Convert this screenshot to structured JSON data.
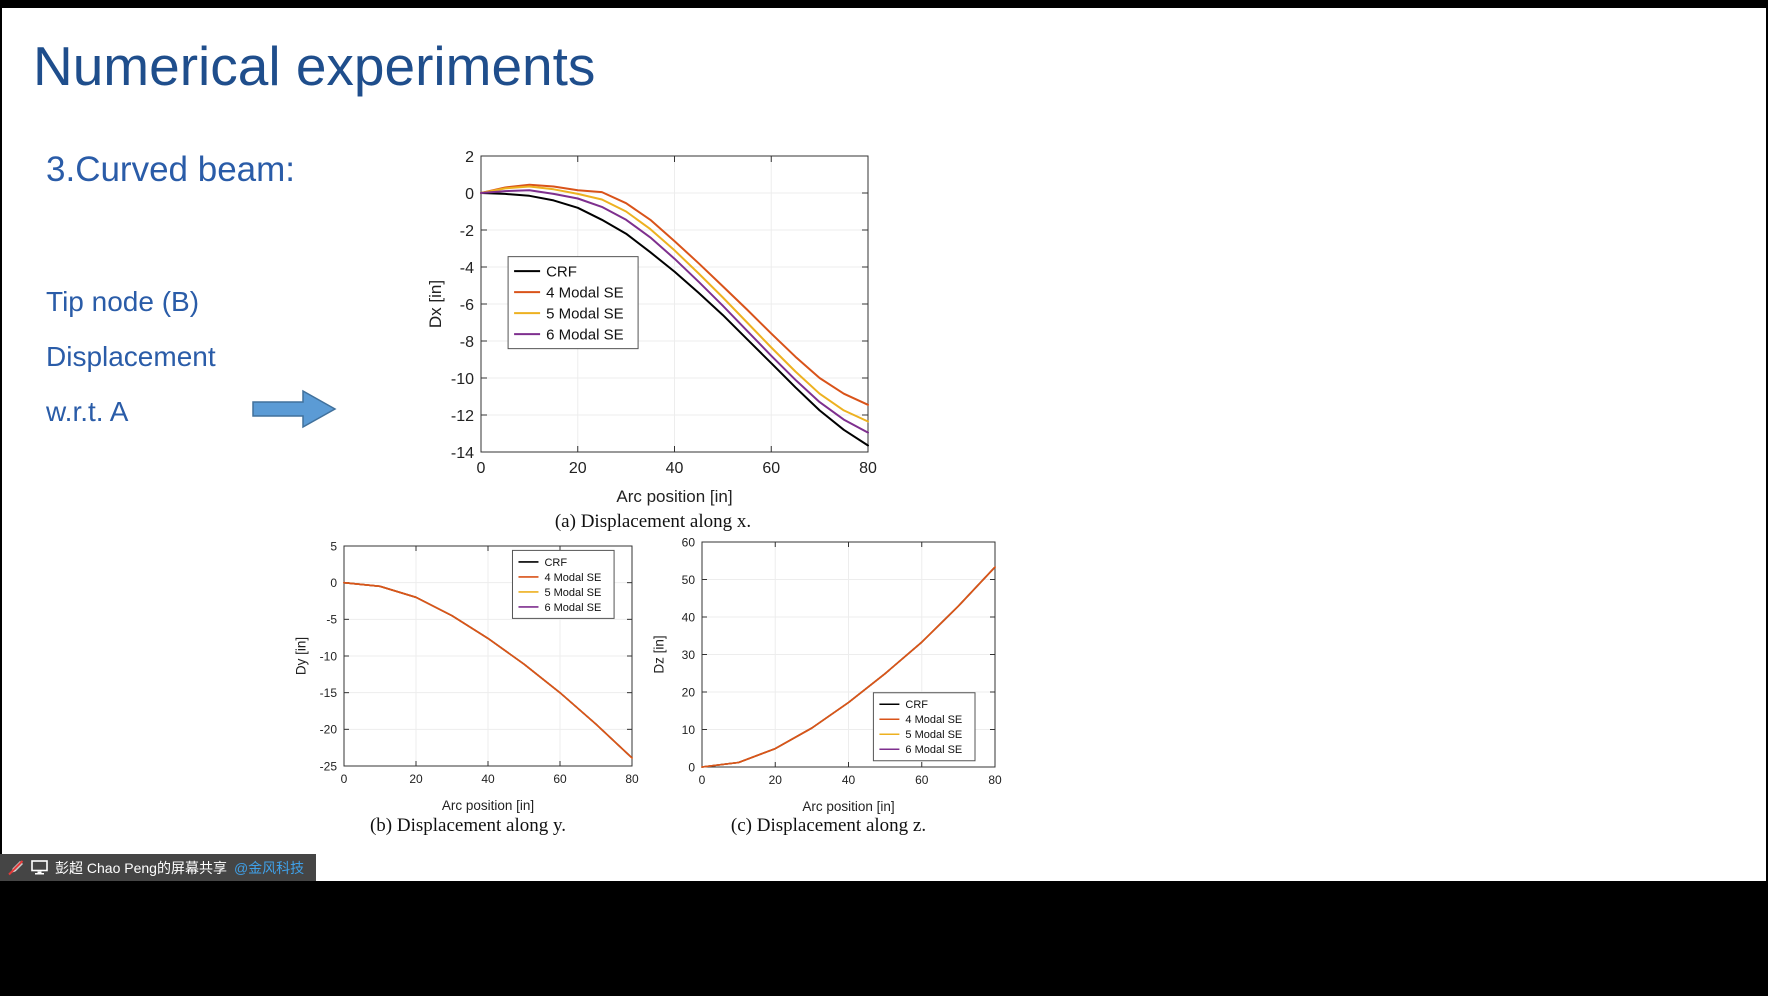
{
  "slide": {
    "title": "Numerical experiments",
    "section": "3.Curved beam:",
    "notes": [
      "Tip node (B)",
      "Displacement",
      "w.r.t. A"
    ]
  },
  "share_bar": {
    "label": "彭超 Chao Peng的屏幕共享",
    "link": "@金风科技"
  },
  "colors": {
    "title": "#1F4E8C",
    "body_text": "#2A5CA8",
    "arrow_fill": "#5B9BD5",
    "arrow_stroke": "#41719C",
    "share_link": "#3FA0E8",
    "series": {
      "CRF": "#000000",
      "4 Modal SE": "#D95319",
      "5 Modal SE": "#EDB120",
      "6 Modal SE": "#7E2F8E"
    }
  },
  "chart_data": [
    {
      "id": "dx",
      "type": "line",
      "caption": "(a) Displacement along x.",
      "xlabel": "Arc position [in]",
      "ylabel": "Dx [in]",
      "xlim": [
        0,
        80
      ],
      "ylim": [
        -14,
        2
      ],
      "xticks": [
        0,
        20,
        40,
        60,
        80
      ],
      "yticks": [
        2,
        0,
        -2,
        -4,
        -6,
        -8,
        -10,
        -12,
        -14
      ],
      "grid": true,
      "legend": {
        "entries": [
          "CRF",
          "4 Modal SE",
          "5 Modal SE",
          "6 Modal SE"
        ],
        "pos": [
          0.07,
          0.34
        ]
      },
      "x": [
        0,
        5,
        10,
        15,
        20,
        25,
        30,
        35,
        40,
        45,
        50,
        55,
        60,
        65,
        70,
        75,
        80
      ],
      "series": [
        {
          "name": "CRF",
          "color": "#000000",
          "values": [
            0,
            -0.05,
            -0.15,
            -0.4,
            -0.8,
            -1.45,
            -2.2,
            -3.2,
            -4.25,
            -5.4,
            -6.6,
            -7.9,
            -9.2,
            -10.5,
            -11.75,
            -12.8,
            -13.65
          ]
        },
        {
          "name": "4 Modal SE",
          "color": "#D95319",
          "values": [
            0,
            0.3,
            0.45,
            0.35,
            0.15,
            0.05,
            -0.55,
            -1.45,
            -2.6,
            -3.8,
            -5.05,
            -6.3,
            -7.6,
            -8.85,
            -10.0,
            -10.85,
            -11.45
          ]
        },
        {
          "name": "5 Modal SE",
          "color": "#EDB120",
          "values": [
            0,
            0.25,
            0.35,
            0.2,
            -0.05,
            -0.35,
            -1.0,
            -1.95,
            -3.1,
            -4.35,
            -5.65,
            -7.0,
            -8.35,
            -9.65,
            -10.85,
            -11.75,
            -12.35
          ]
        },
        {
          "name": "6 Modal SE",
          "color": "#7E2F8E",
          "values": [
            0,
            0.1,
            0.15,
            -0.05,
            -0.3,
            -0.75,
            -1.45,
            -2.4,
            -3.55,
            -4.8,
            -6.1,
            -7.45,
            -8.8,
            -10.1,
            -11.3,
            -12.25,
            -12.95
          ]
        }
      ]
    },
    {
      "id": "dy",
      "type": "line",
      "caption": "(b) Displacement along y.",
      "xlabel": "Arc position [in]",
      "ylabel": "Dy [in]",
      "xlim": [
        0,
        80
      ],
      "ylim": [
        -25,
        5
      ],
      "xticks": [
        0,
        20,
        40,
        60,
        80
      ],
      "yticks": [
        5,
        0,
        -5,
        -10,
        -15,
        -20,
        -25
      ],
      "grid": true,
      "legend": {
        "entries": [
          "CRF",
          "4 Modal SE",
          "5 Modal SE",
          "6 Modal SE"
        ],
        "pos": [
          0.585,
          0.02
        ]
      },
      "x": [
        0,
        10,
        20,
        30,
        40,
        50,
        60,
        70,
        80
      ],
      "series": [
        {
          "name": "CRF",
          "color": "#000000",
          "values": [
            0,
            -0.5,
            -2.0,
            -4.5,
            -7.6,
            -11.1,
            -15.0,
            -19.3,
            -23.9
          ]
        },
        {
          "name": "6 Modal SE",
          "color": "#7E2F8E",
          "values": [
            0,
            -0.5,
            -2.0,
            -4.5,
            -7.6,
            -11.1,
            -15.0,
            -19.3,
            -23.9
          ]
        },
        {
          "name": "5 Modal SE",
          "color": "#EDB120",
          "values": [
            0,
            -0.5,
            -2.0,
            -4.5,
            -7.6,
            -11.1,
            -15.0,
            -19.3,
            -23.9
          ]
        },
        {
          "name": "4 Modal SE",
          "color": "#D95319",
          "values": [
            0,
            -0.5,
            -2.0,
            -4.5,
            -7.6,
            -11.1,
            -15.0,
            -19.3,
            -23.9
          ]
        }
      ]
    },
    {
      "id": "dz",
      "type": "line",
      "caption": "(c) Displacement along z.",
      "xlabel": "Arc position [in]",
      "ylabel": "Dz [in]",
      "xlim": [
        0,
        80
      ],
      "ylim": [
        0,
        60
      ],
      "xticks": [
        0,
        20,
        40,
        60,
        80
      ],
      "yticks": [
        0,
        10,
        20,
        30,
        40,
        50,
        60
      ],
      "grid": true,
      "legend": {
        "entries": [
          "CRF",
          "4 Modal SE",
          "5 Modal SE",
          "6 Modal SE"
        ],
        "pos": [
          0.585,
          0.67
        ]
      },
      "x": [
        0,
        10,
        20,
        30,
        40,
        50,
        60,
        70,
        80
      ],
      "series": [
        {
          "name": "CRF",
          "color": "#000000",
          "values": [
            0,
            1.2,
            4.9,
            10.4,
            17.2,
            24.9,
            33.3,
            42.9,
            53.3
          ]
        },
        {
          "name": "6 Modal SE",
          "color": "#7E2F8E",
          "values": [
            0,
            1.2,
            4.9,
            10.4,
            17.2,
            24.9,
            33.3,
            42.9,
            53.3
          ]
        },
        {
          "name": "5 Modal SE",
          "color": "#EDB120",
          "values": [
            0,
            1.2,
            4.9,
            10.4,
            17.2,
            24.9,
            33.3,
            42.9,
            53.3
          ]
        },
        {
          "name": "4 Modal SE",
          "color": "#D95319",
          "values": [
            0,
            1.2,
            4.9,
            10.4,
            17.2,
            24.9,
            33.3,
            42.9,
            53.3
          ]
        }
      ]
    }
  ]
}
